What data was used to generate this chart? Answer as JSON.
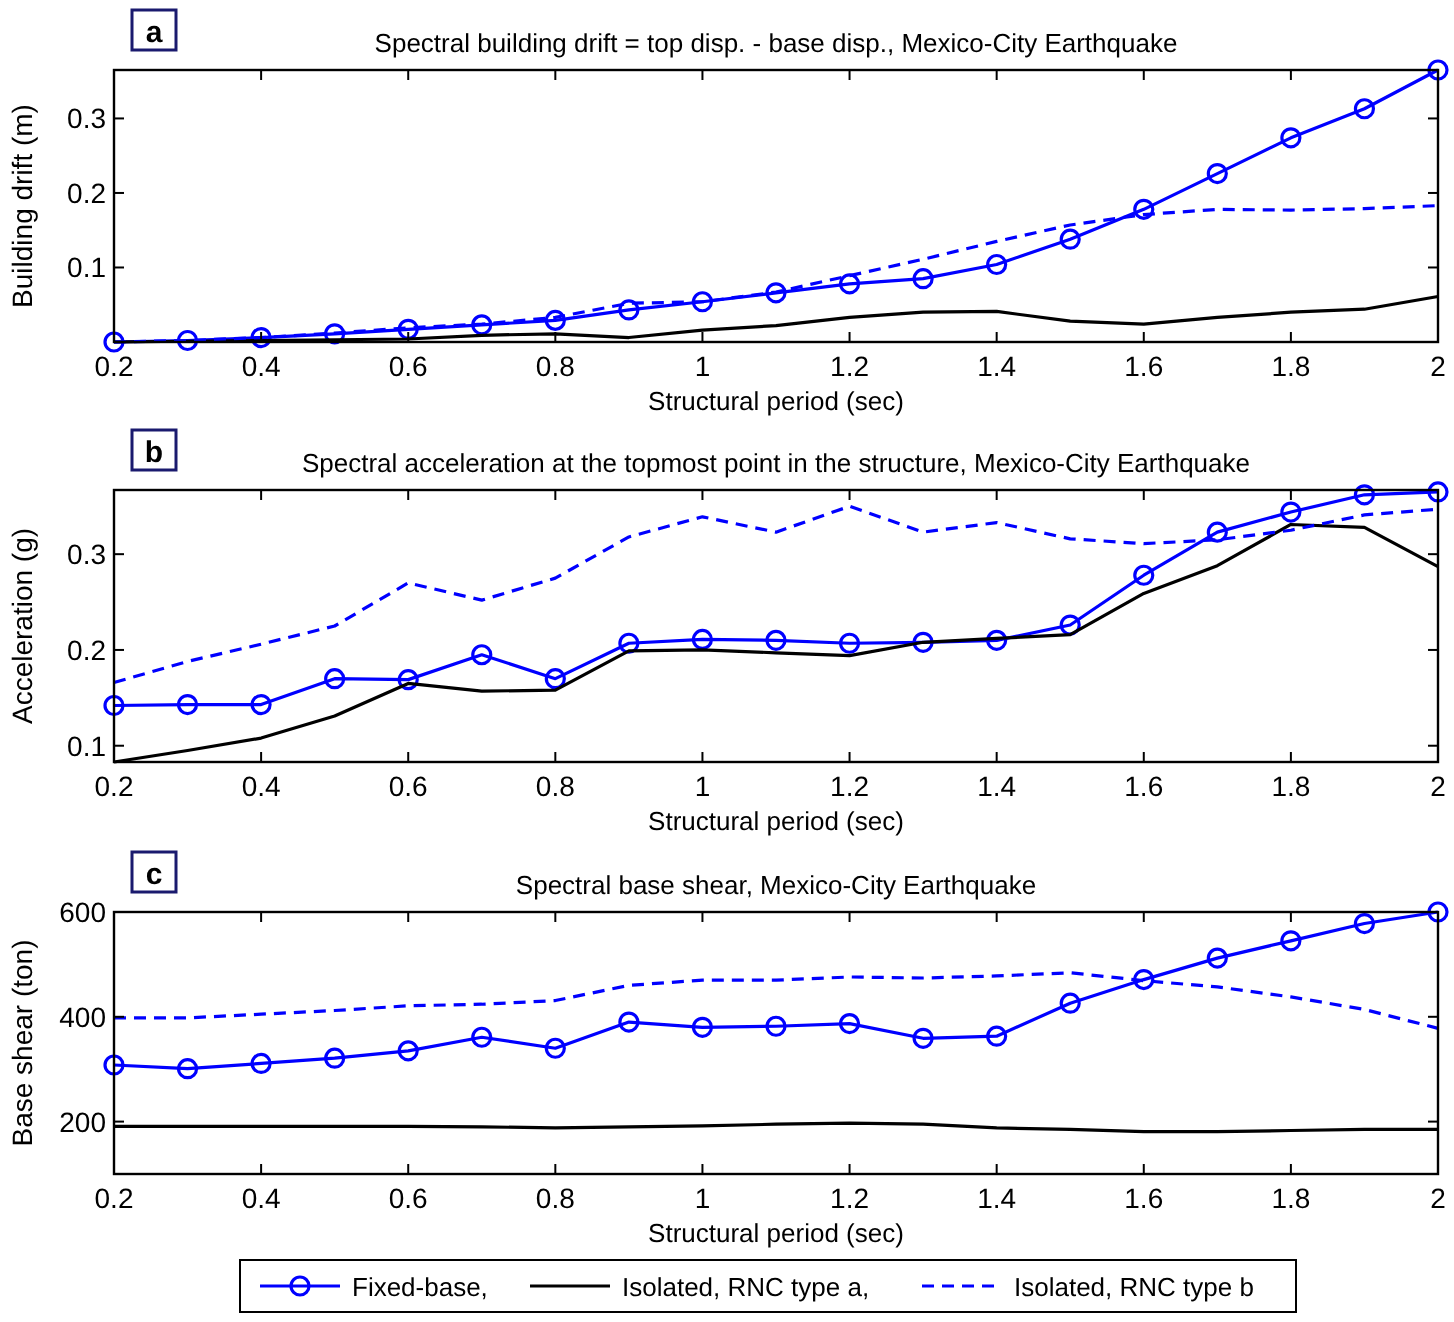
{
  "chart_data": [
    {
      "type": "line",
      "title": "Spectral building drift = top disp. - base disp., Mexico-City Earthquake",
      "xlabel": "Structural period (sec)",
      "ylabel": "Building drift (m)",
      "annotations": [
        "a"
      ],
      "x": [
        0.2,
        0.3,
        0.4,
        0.5,
        0.6,
        0.7,
        0.8,
        0.9,
        1.0,
        1.1,
        1.2,
        1.3,
        1.4,
        1.5,
        1.6,
        1.7,
        1.8,
        1.9,
        2.0
      ],
      "xlim": [
        0.2,
        2
      ],
      "xticks": [
        0.2,
        0.4,
        0.6,
        0.8,
        1,
        1.2,
        1.4,
        1.6,
        1.8,
        2
      ],
      "ylim": [
        0,
        0.365
      ],
      "yticks": [
        0.1,
        0.2,
        0.3
      ],
      "grid": false,
      "legend": false,
      "series": [
        {
          "color": "#0000ff",
          "marker": "circle",
          "line_style": "solid",
          "values": [
            0,
            0.002,
            0.006,
            0.011,
            0.017,
            0.023,
            0.029,
            0.043,
            0.054,
            0.066,
            0.078,
            0.085,
            0.104,
            0.138,
            0.178,
            0.226,
            0.274,
            0.313,
            0.365
          ]
        },
        {
          "color": "#000000",
          "marker": "none",
          "line_style": "solid",
          "values": [
            0,
            0.001,
            0.002,
            0.003,
            0.004,
            0.009,
            0.011,
            0.006,
            0.016,
            0.022,
            0.033,
            0.04,
            0.041,
            0.028,
            0.024,
            0.033,
            0.04,
            0.044,
            0.061
          ]
        },
        {
          "color": "#0000ff",
          "marker": "none",
          "line_style": "dashed",
          "values": [
            0,
            0.002,
            0.006,
            0.012,
            0.019,
            0.024,
            0.033,
            0.052,
            0.054,
            0.067,
            0.089,
            0.111,
            0.135,
            0.157,
            0.171,
            0.178,
            0.177,
            0.179,
            0.183
          ]
        }
      ]
    },
    {
      "type": "line",
      "title": "Spectral acceleration at the topmost point in the structure, Mexico-City Earthquake",
      "xlabel": "Structural period (sec)",
      "ylabel": "Acceleration (g)",
      "annotations": [
        "b"
      ],
      "x": [
        0.2,
        0.3,
        0.4,
        0.5,
        0.6,
        0.7,
        0.8,
        0.9,
        1.0,
        1.1,
        1.2,
        1.3,
        1.4,
        1.5,
        1.6,
        1.7,
        1.8,
        1.9,
        2.0
      ],
      "xlim": [
        0.2,
        2
      ],
      "xticks": [
        0.2,
        0.4,
        0.6,
        0.8,
        1,
        1.2,
        1.4,
        1.6,
        1.8,
        2
      ],
      "ylim": [
        0.083,
        0.367
      ],
      "yticks": [
        0.1,
        0.2,
        0.3
      ],
      "grid": false,
      "legend": false,
      "series": [
        {
          "color": "#0000ff",
          "marker": "circle",
          "line_style": "solid",
          "values": [
            0.142,
            0.143,
            0.143,
            0.17,
            0.169,
            0.195,
            0.17,
            0.207,
            0.211,
            0.21,
            0.207,
            0.208,
            0.21,
            0.226,
            0.278,
            0.323,
            0.344,
            0.362,
            0.365
          ]
        },
        {
          "color": "#000000",
          "marker": "none",
          "line_style": "solid",
          "values": [
            0.083,
            0.095,
            0.108,
            0.131,
            0.165,
            0.157,
            0.158,
            0.199,
            0.2,
            0.197,
            0.194,
            0.208,
            0.212,
            0.216,
            0.259,
            0.288,
            0.331,
            0.328,
            0.287
          ]
        },
        {
          "color": "#0000ff",
          "marker": "none",
          "line_style": "dashed",
          "values": [
            0.166,
            0.188,
            0.206,
            0.225,
            0.27,
            0.252,
            0.275,
            0.318,
            0.339,
            0.323,
            0.35,
            0.323,
            0.333,
            0.316,
            0.311,
            0.315,
            0.325,
            0.341,
            0.347
          ]
        }
      ]
    },
    {
      "type": "line",
      "title": "Spectral base shear, Mexico-City Earthquake",
      "xlabel": "Structural period (sec)",
      "ylabel": "Base shear (ton)",
      "annotations": [
        "c"
      ],
      "x": [
        0.2,
        0.3,
        0.4,
        0.5,
        0.6,
        0.7,
        0.8,
        0.9,
        1.0,
        1.1,
        1.2,
        1.3,
        1.4,
        1.5,
        1.6,
        1.7,
        1.8,
        1.9,
        2.0
      ],
      "xlim": [
        0.2,
        2
      ],
      "xticks": [
        0.2,
        0.4,
        0.6,
        0.8,
        1,
        1.2,
        1.4,
        1.6,
        1.8,
        2
      ],
      "ylim": [
        100,
        600
      ],
      "yticks": [
        200,
        400,
        600
      ],
      "grid": false,
      "legend": "bottom",
      "series": [
        {
          "name": "Fixed-base,",
          "color": "#0000ff",
          "marker": "circle",
          "line_style": "solid",
          "values": [
            308,
            301,
            311,
            321,
            335,
            361,
            340,
            390,
            380,
            382,
            387,
            359,
            363,
            426,
            471,
            512,
            545,
            578,
            600
          ]
        },
        {
          "name": "Isolated, RNC type a,",
          "color": "#000000",
          "marker": "none",
          "line_style": "solid",
          "values": [
            191,
            191,
            191,
            191,
            191,
            190,
            188,
            190,
            192,
            195,
            197,
            195,
            188,
            185,
            181,
            181,
            183,
            185,
            185
          ]
        },
        {
          "name": "Isolated, RNC type b",
          "color": "#0000ff",
          "marker": "none",
          "line_style": "dashed",
          "values": [
            398,
            398,
            405,
            412,
            421,
            424,
            431,
            460,
            470,
            470,
            476,
            474,
            478,
            484,
            469,
            457,
            438,
            414,
            378
          ]
        }
      ]
    }
  ]
}
